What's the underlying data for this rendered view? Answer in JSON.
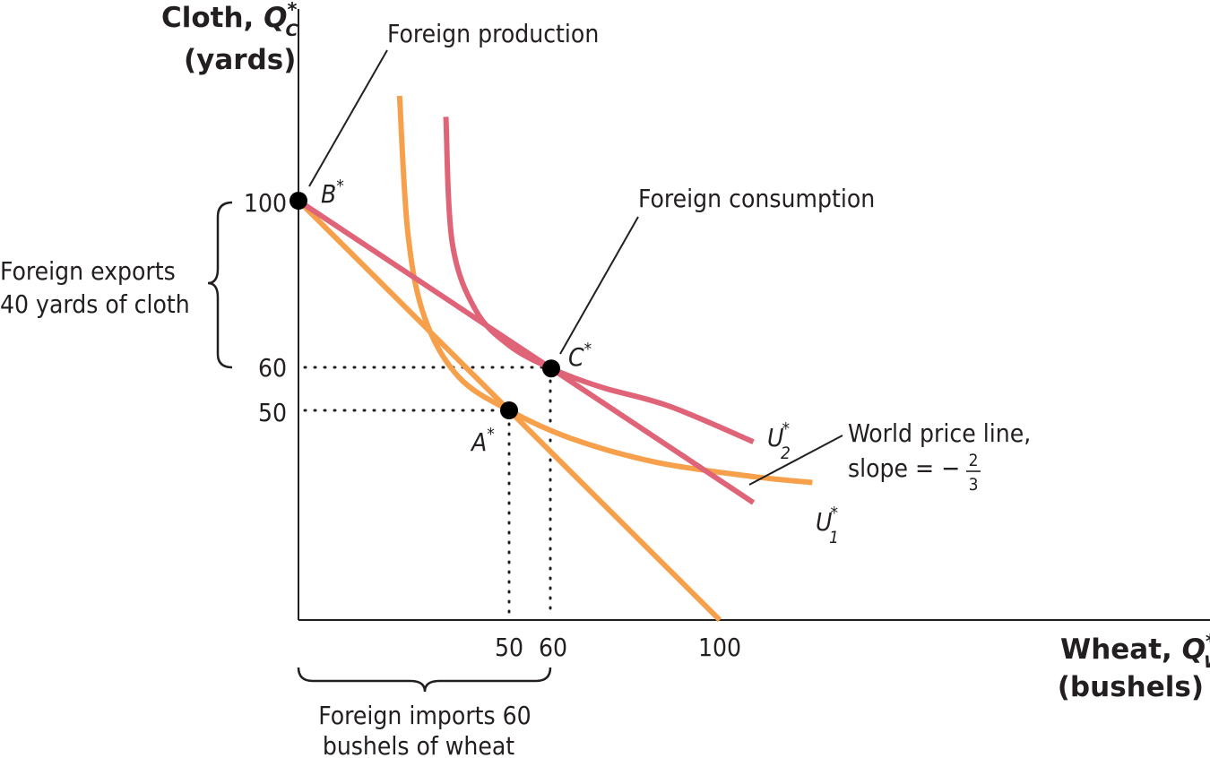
{
  "chart_data": {
    "type": "line",
    "y_axis": {
      "title_prefix": "Cloth, ",
      "var": "Q",
      "var_sup": "*",
      "var_sub": "C",
      "unit": "(yards)"
    },
    "x_axis": {
      "title_prefix": "Wheat, ",
      "var": "Q",
      "var_sup": "*",
      "var_sub": "W",
      "unit": "(bushels)"
    },
    "xlim": [
      0,
      217
    ],
    "ylim": [
      0,
      100
    ],
    "x_ticks": [
      "50",
      "60",
      "100"
    ],
    "x_tick_values": [
      50,
      60,
      100
    ],
    "y_ticks": [
      "100",
      "60",
      "50"
    ],
    "y_tick_values": [
      100,
      60,
      50
    ],
    "colors": {
      "orange": "#f7a04b",
      "pink": "#e06478",
      "ink": "#231f20"
    },
    "series": [
      {
        "key": "production_frontier",
        "color": "#f7a04b",
        "points": [
          [
            0,
            100
          ],
          [
            100,
            0
          ]
        ]
      },
      {
        "key": "world_price_line",
        "color": "#e06478",
        "points": [
          [
            0,
            100
          ],
          [
            108,
            28
          ]
        ]
      },
      {
        "key": "u1",
        "label": "U",
        "sup": "*",
        "sub": "1",
        "color": "#f7a04b",
        "points": [
          [
            24,
            125
          ],
          [
            26,
            92
          ],
          [
            30,
            72
          ],
          [
            38,
            58
          ],
          [
            50,
            50
          ],
          [
            65,
            43.2
          ],
          [
            85,
            37.6
          ],
          [
            108,
            34.2
          ],
          [
            122,
            32.8
          ]
        ]
      },
      {
        "key": "u2",
        "label": "U",
        "sup": "*",
        "sub": "2",
        "color": "#e06478",
        "points": [
          [
            35,
            120
          ],
          [
            36.5,
            90
          ],
          [
            42,
            74
          ],
          [
            50,
            65.5
          ],
          [
            60,
            60
          ],
          [
            72,
            55.5
          ],
          [
            88,
            51
          ],
          [
            108,
            42.5
          ]
        ]
      }
    ],
    "points": [
      {
        "key": "B",
        "label": "B",
        "sup": "*",
        "x": 0,
        "y": 100
      },
      {
        "key": "A",
        "label": "A",
        "sup": "*",
        "x": 50,
        "y": 50
      },
      {
        "key": "C",
        "label": "C",
        "sup": "*",
        "x": 60,
        "y": 60
      }
    ],
    "annotations": {
      "foreign_production": "Foreign production",
      "foreign_consumption": "Foreign consumption",
      "world_price_line": "World price line,",
      "slope_text": "slope = −",
      "slope_num": "2",
      "slope_den": "3",
      "exports_line1": "Foreign exports",
      "exports_line2": "40 yards of cloth",
      "imports_line1": "Foreign imports 60",
      "imports_line2": "bushels of wheat"
    }
  }
}
